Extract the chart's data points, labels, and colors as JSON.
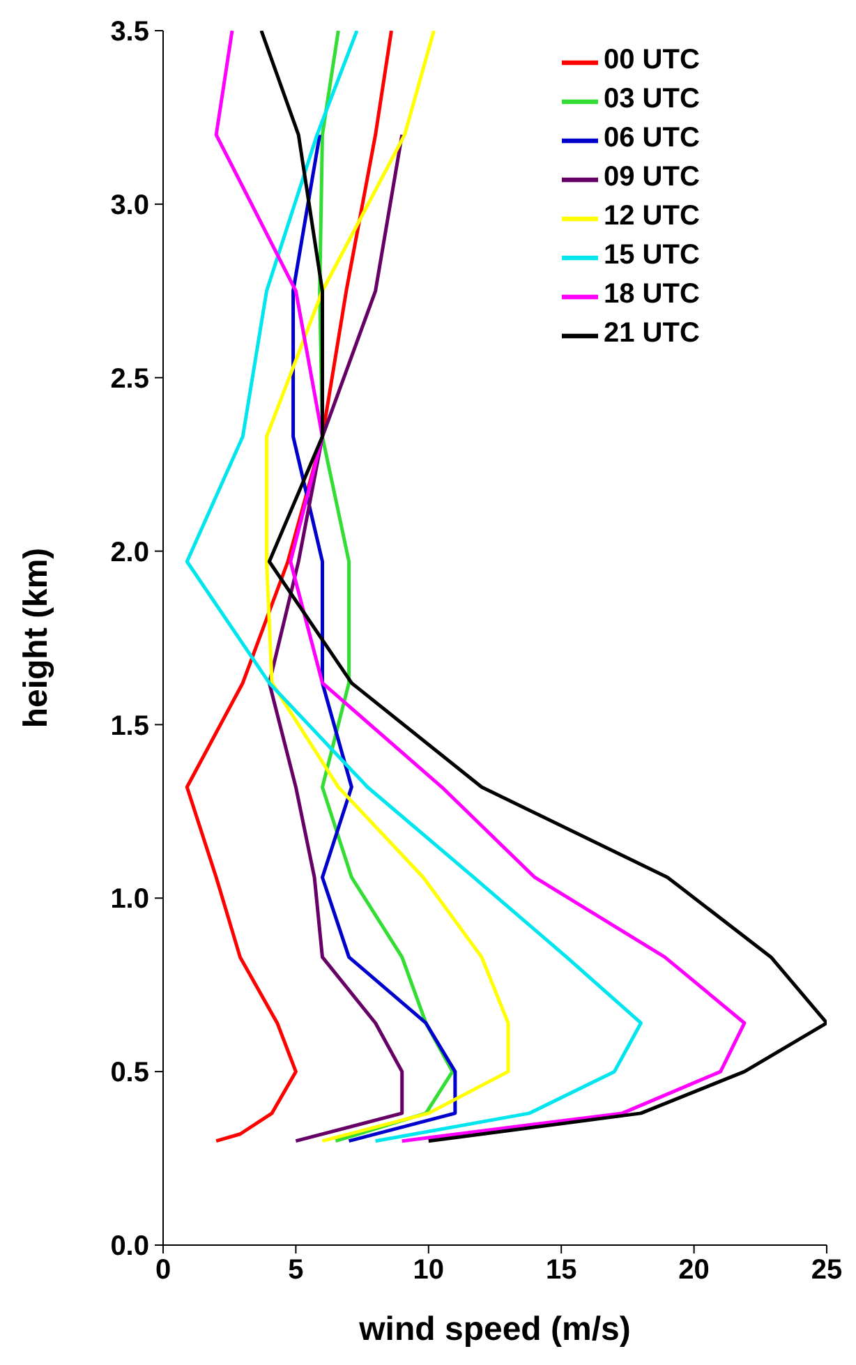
{
  "chart_data": {
    "type": "line",
    "xlabel": "wind speed (m/s)",
    "ylabel": "height (km)",
    "xlim": [
      0,
      25
    ],
    "xticks": [
      0,
      5,
      10,
      15,
      20,
      25
    ],
    "ylim": [
      0,
      3.5
    ],
    "yticks": [
      {
        "value": 0,
        "label": "0.0"
      },
      {
        "value": 0.5,
        "label": "0.5"
      },
      {
        "value": 1,
        "label": "1.0"
      },
      {
        "value": 1.5,
        "label": "1.5"
      },
      {
        "value": 2,
        "label": "2.0"
      },
      {
        "value": 2.5,
        "label": "2.5"
      },
      {
        "value": 3,
        "label": "3.0"
      },
      {
        "value": 3.5,
        "label": "3.5"
      }
    ],
    "legend": "top right",
    "grid": false,
    "marker": "none",
    "series": [
      {
        "name": "00 UTC",
        "color": "#ff0000",
        "x": [
          2.0,
          2.9,
          4.1,
          5.0,
          4.3,
          2.9,
          2.0,
          0.9,
          3.0,
          4.7,
          6.0,
          6.9,
          8.0,
          8.6
        ],
        "values": [
          0.3,
          0.32,
          0.38,
          0.5,
          0.64,
          0.83,
          1.06,
          1.32,
          1.62,
          1.97,
          2.33,
          2.75,
          3.2,
          3.5
        ]
      },
      {
        "name": "03 UTC",
        "color": "#33dd33",
        "x": [
          6.5,
          9.9,
          10.9,
          9.9,
          9.0,
          7.1,
          6.0,
          7.0,
          7.0,
          6.0,
          5.9,
          6.0,
          6.6
        ],
        "values": [
          0.3,
          0.38,
          0.5,
          0.64,
          0.83,
          1.06,
          1.32,
          1.62,
          1.97,
          2.33,
          2.75,
          3.2,
          3.5
        ]
      },
      {
        "name": "06 UTC",
        "color": "#0000cc",
        "x": [
          7.0,
          11.0,
          11.0,
          9.9,
          7.0,
          6.0,
          7.1,
          6.0,
          6.0,
          4.9,
          4.9,
          5.9
        ],
        "values": [
          0.3,
          0.38,
          0.5,
          0.64,
          0.83,
          1.06,
          1.32,
          1.62,
          1.97,
          2.33,
          2.75,
          3.2
        ]
      },
      {
        "name": "09 UTC",
        "color": "#660066",
        "x": [
          5.0,
          9.0,
          9.0,
          8.0,
          6.0,
          5.7,
          5.0,
          4.0,
          5.1,
          6.0,
          8.0,
          9.0
        ],
        "values": [
          0.3,
          0.38,
          0.5,
          0.64,
          0.83,
          1.06,
          1.32,
          1.62,
          1.97,
          2.33,
          2.75,
          3.2
        ]
      },
      {
        "name": "12 UTC",
        "color": "#ffff00",
        "x": [
          6.0,
          10.0,
          13.0,
          13.0,
          12.0,
          9.8,
          6.6,
          4.1,
          3.9,
          3.9,
          6.0,
          9.1,
          10.2
        ],
        "values": [
          0.3,
          0.38,
          0.5,
          0.64,
          0.83,
          1.06,
          1.32,
          1.62,
          1.97,
          2.33,
          2.75,
          3.2,
          3.5
        ]
      },
      {
        "name": "15 UTC",
        "color": "#00e5ee",
        "x": [
          8.0,
          13.8,
          17.0,
          18.0,
          15.2,
          11.7,
          7.7,
          4.0,
          0.9,
          3.0,
          3.9,
          5.8,
          7.3
        ],
        "values": [
          0.3,
          0.38,
          0.5,
          0.64,
          0.83,
          1.06,
          1.32,
          1.62,
          1.97,
          2.33,
          2.75,
          3.2,
          3.5
        ]
      },
      {
        "name": "18 UTC",
        "color": "#ff00ff",
        "x": [
          9.0,
          17.3,
          21.0,
          21.9,
          18.9,
          14.0,
          10.5,
          6.0,
          4.8,
          6.0,
          5.0,
          2.0,
          2.6
        ],
        "values": [
          0.3,
          0.38,
          0.5,
          0.64,
          0.83,
          1.06,
          1.32,
          1.62,
          1.97,
          2.33,
          2.75,
          3.2,
          3.5
        ]
      },
      {
        "name": "21 UTC",
        "color": "#000000",
        "x": [
          10.0,
          18.0,
          21.9,
          25.0,
          22.9,
          19.0,
          12.0,
          7.1,
          4.0,
          6.0,
          6.0,
          5.1,
          3.7
        ],
        "values": [
          0.3,
          0.38,
          0.5,
          0.64,
          0.83,
          1.06,
          1.32,
          1.62,
          1.97,
          2.33,
          2.75,
          3.2,
          3.5
        ]
      }
    ]
  }
}
